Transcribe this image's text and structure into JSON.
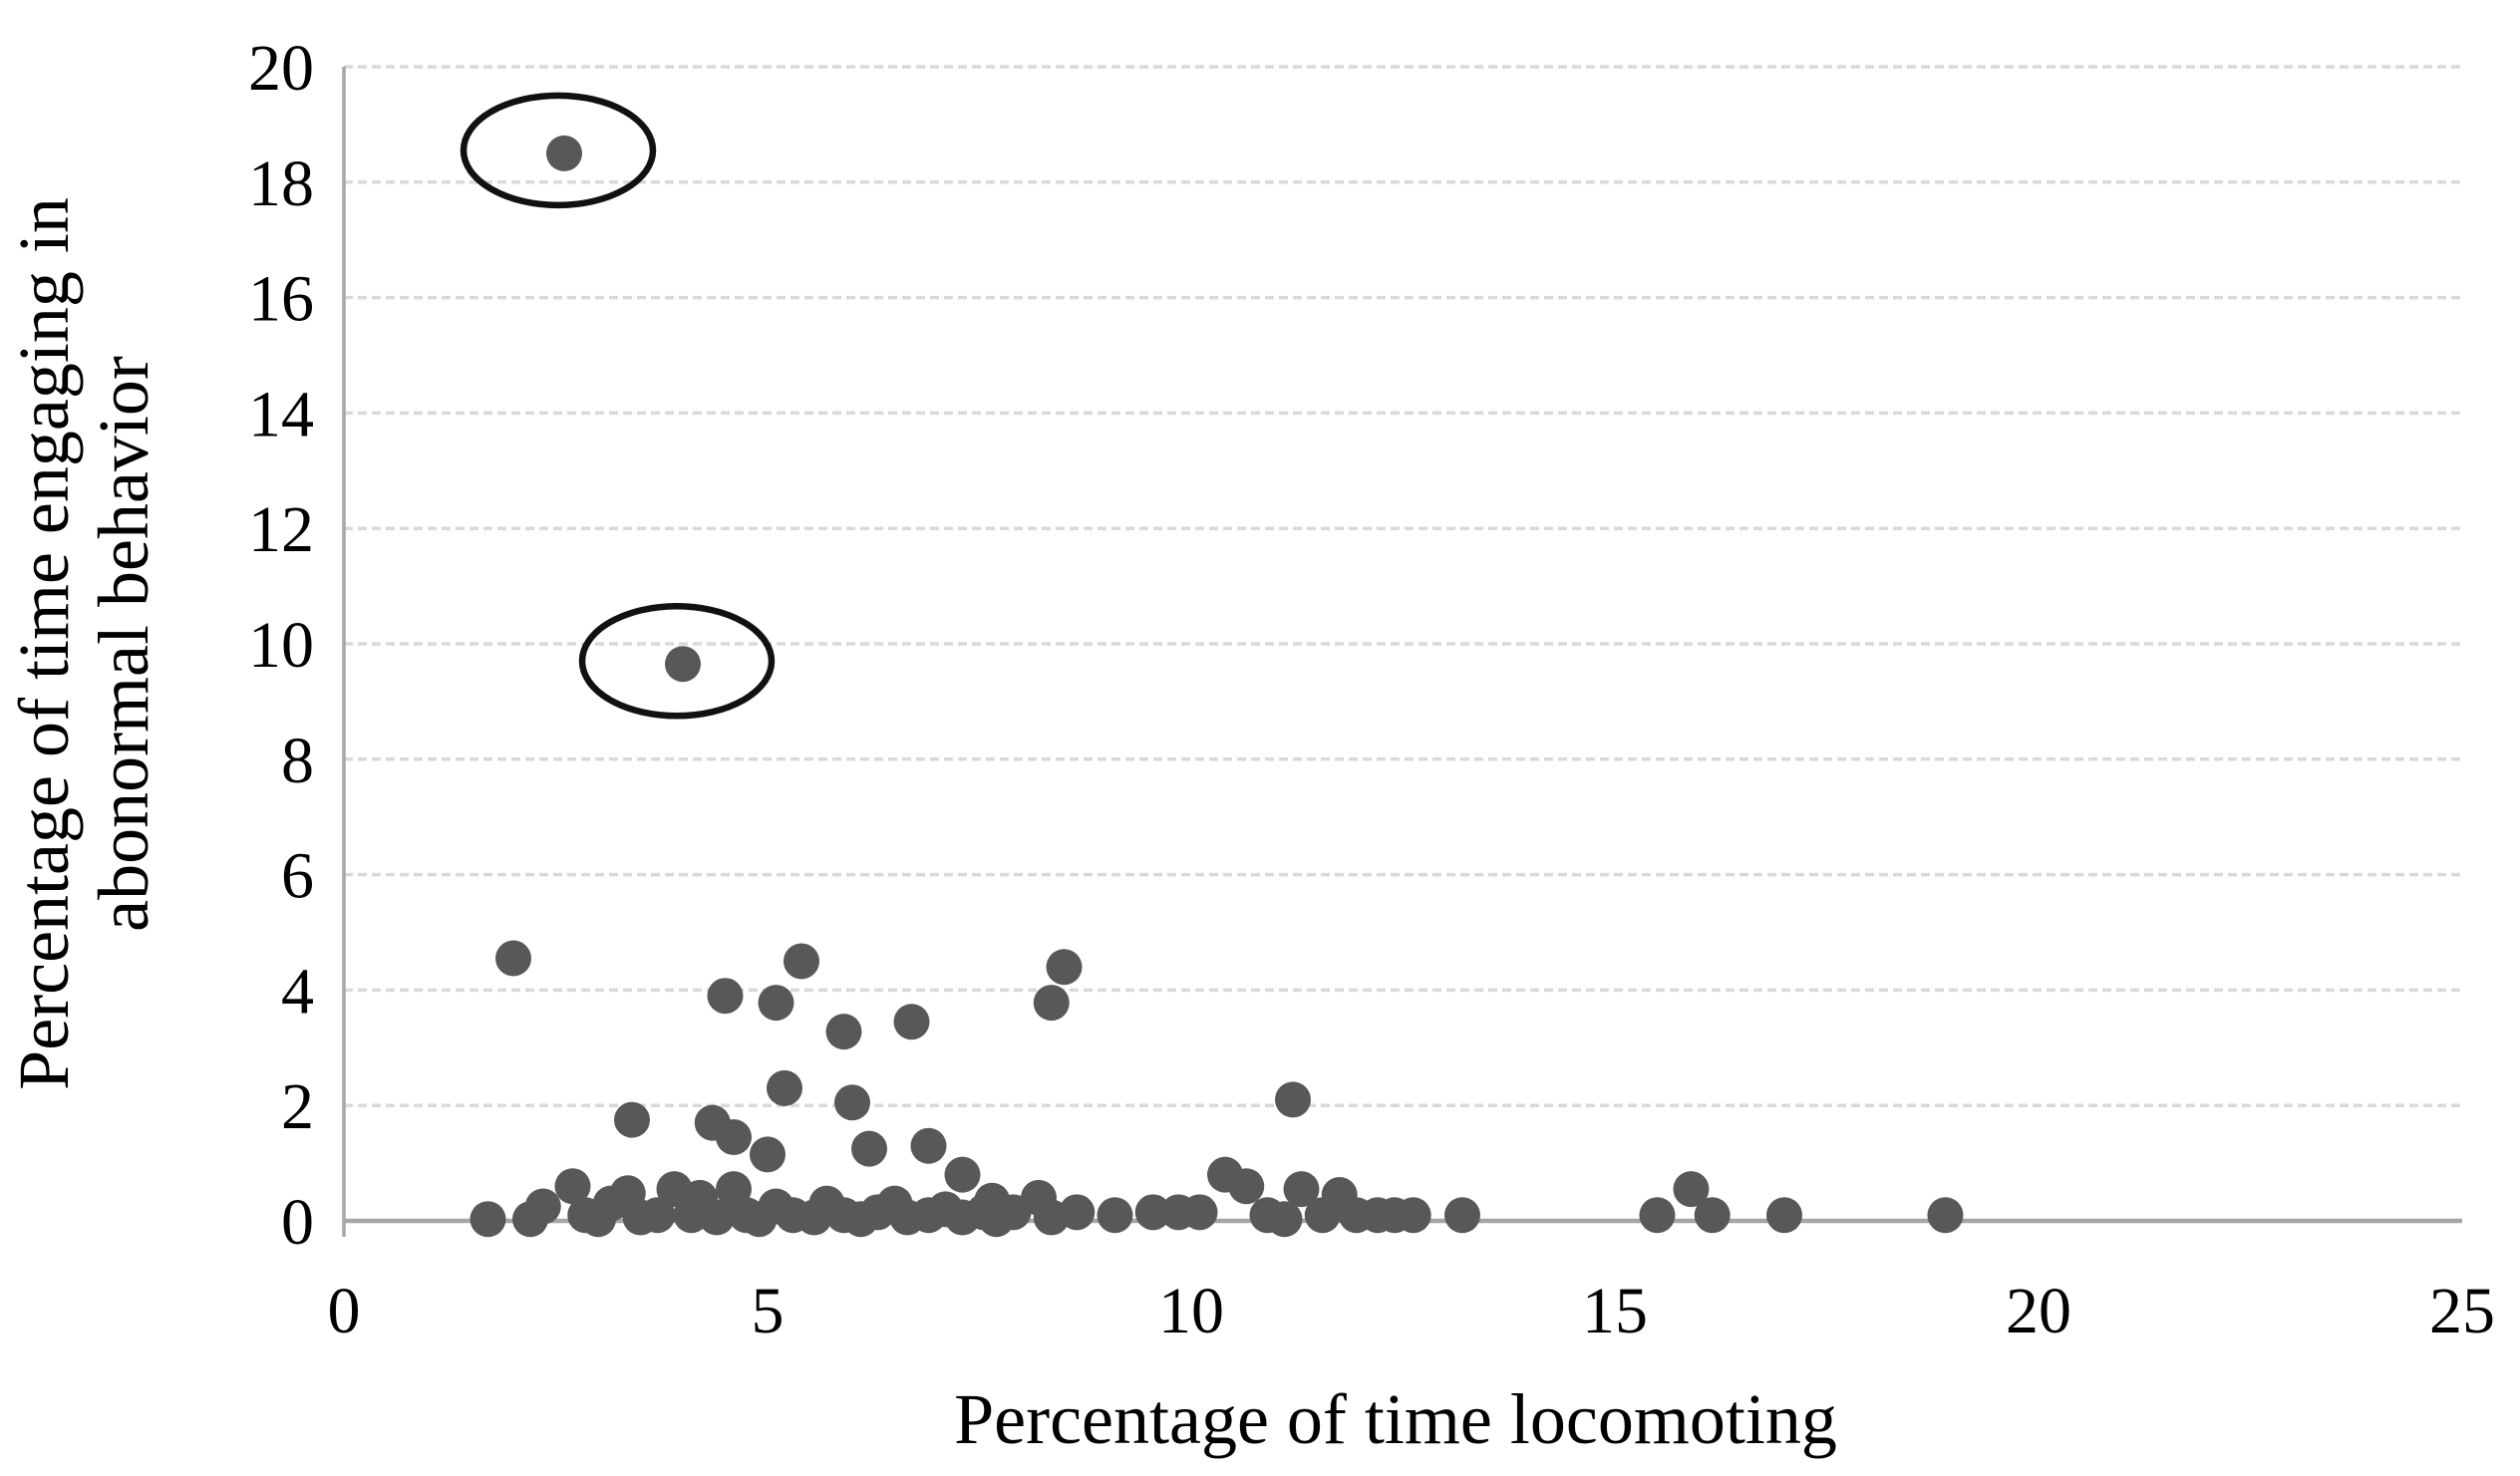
{
  "figure": {
    "description": "Scatter plot of abnormal behavior vs locomotion time with two circled outliers",
    "background_color": "#ffffff",
    "text_color": "#000000"
  },
  "chart_data": {
    "type": "scatter",
    "title": "",
    "xlabel": "Percentage of time locomoting",
    "ylabel_lines": [
      "Percentage of time engaging in",
      "abonormal behavior"
    ],
    "xlim": [
      0,
      25
    ],
    "ylim": [
      0,
      20
    ],
    "xticks": [
      0,
      5,
      10,
      15,
      20,
      25
    ],
    "yticks": [
      0,
      2,
      4,
      6,
      8,
      10,
      12,
      14,
      16,
      18,
      20
    ],
    "grid": "horizontal dashed gridlines at every y tick",
    "legend_position": "none",
    "marker_shape": "circle",
    "marker_color": "#585858",
    "gridline_color": "#d9d9d9",
    "axis_line_color": "#a6a6a6",
    "annotation_color": "#111111",
    "annotation_note": "Two outlier points are circled with black ellipses",
    "circled_outliers": [
      [
        2.6,
        18.5
      ],
      [
        4.0,
        9.65
      ]
    ],
    "points": [
      [
        2.0,
        4.55
      ],
      [
        5.4,
        4.5
      ],
      [
        8.5,
        4.4
      ],
      [
        4.5,
        3.9
      ],
      [
        5.1,
        3.78
      ],
      [
        8.35,
        3.78
      ],
      [
        6.7,
        3.45
      ],
      [
        5.9,
        3.28
      ],
      [
        5.2,
        2.3
      ],
      [
        11.2,
        2.1
      ],
      [
        6.0,
        2.05
      ],
      [
        3.4,
        1.75
      ],
      [
        4.35,
        1.7
      ],
      [
        4.6,
        1.45
      ],
      [
        6.9,
        1.3
      ],
      [
        6.2,
        1.25
      ],
      [
        5.0,
        1.15
      ],
      [
        7.3,
        0.8
      ],
      [
        10.4,
        0.8
      ],
      [
        2.7,
        0.6
      ],
      [
        10.65,
        0.6
      ],
      [
        3.9,
        0.55
      ],
      [
        4.6,
        0.55
      ],
      [
        11.3,
        0.55
      ],
      [
        15.9,
        0.55
      ],
      [
        3.35,
        0.48
      ],
      [
        11.75,
        0.45
      ],
      [
        4.2,
        0.4
      ],
      [
        8.2,
        0.4
      ],
      [
        7.65,
        0.35
      ],
      [
        3.15,
        0.3
      ],
      [
        5.7,
        0.3
      ],
      [
        6.5,
        0.3
      ],
      [
        2.35,
        0.25
      ],
      [
        5.1,
        0.25
      ],
      [
        7.1,
        0.2
      ],
      [
        6.3,
        0.15
      ],
      [
        7.55,
        0.15
      ],
      [
        7.9,
        0.15
      ],
      [
        8.65,
        0.15
      ],
      [
        9.55,
        0.15
      ],
      [
        9.85,
        0.15
      ],
      [
        10.1,
        0.15
      ],
      [
        2.85,
        0.1
      ],
      [
        3.7,
        0.1
      ],
      [
        4.1,
        0.1
      ],
      [
        4.75,
        0.1
      ],
      [
        5.3,
        0.1
      ],
      [
        5.9,
        0.1
      ],
      [
        6.9,
        0.1
      ],
      [
        9.1,
        0.1
      ],
      [
        10.9,
        0.1
      ],
      [
        11.55,
        0.1
      ],
      [
        11.95,
        0.1
      ],
      [
        12.2,
        0.1
      ],
      [
        12.4,
        0.1
      ],
      [
        12.62,
        0.1
      ],
      [
        13.2,
        0.1
      ],
      [
        15.5,
        0.1
      ],
      [
        16.15,
        0.1
      ],
      [
        17.0,
        0.1
      ],
      [
        18.9,
        0.1
      ],
      [
        3.5,
        0.06
      ],
      [
        4.4,
        0.06
      ],
      [
        5.55,
        0.06
      ],
      [
        6.65,
        0.06
      ],
      [
        7.3,
        0.06
      ],
      [
        8.35,
        0.06
      ],
      [
        1.7,
        0.03
      ],
      [
        2.2,
        0.03
      ],
      [
        3.0,
        0.03
      ],
      [
        4.9,
        0.03
      ],
      [
        6.1,
        0.03
      ],
      [
        7.7,
        0.03
      ],
      [
        11.1,
        0.03
      ]
    ]
  }
}
